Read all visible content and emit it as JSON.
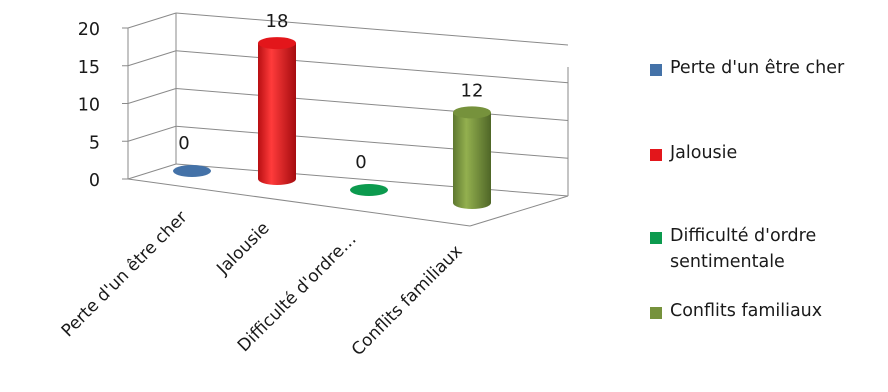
{
  "chart_data": {
    "type": "bar",
    "style": "3d-cylinder",
    "title": "",
    "xlabel": "",
    "ylabel": "",
    "ylim": [
      0,
      20
    ],
    "yticks": [
      0,
      5,
      10,
      15,
      20
    ],
    "grid": true,
    "legend_position": "right",
    "categories": [
      "Perte d'un être cher",
      "Jalousie",
      "Difficulté d'ordre…",
      "Conflits familiaux"
    ],
    "values": [
      0,
      18,
      0,
      12
    ],
    "data_labels": [
      "0",
      "18",
      "0",
      "12"
    ],
    "colors": [
      "#4472a8",
      "#e3161b",
      "#0c9a4e",
      "#76923c"
    ],
    "legend": [
      "Perte d'un être cher",
      "Jalousie",
      "Difficulté d'ordre sentimentale",
      "Conflits familiaux"
    ]
  }
}
